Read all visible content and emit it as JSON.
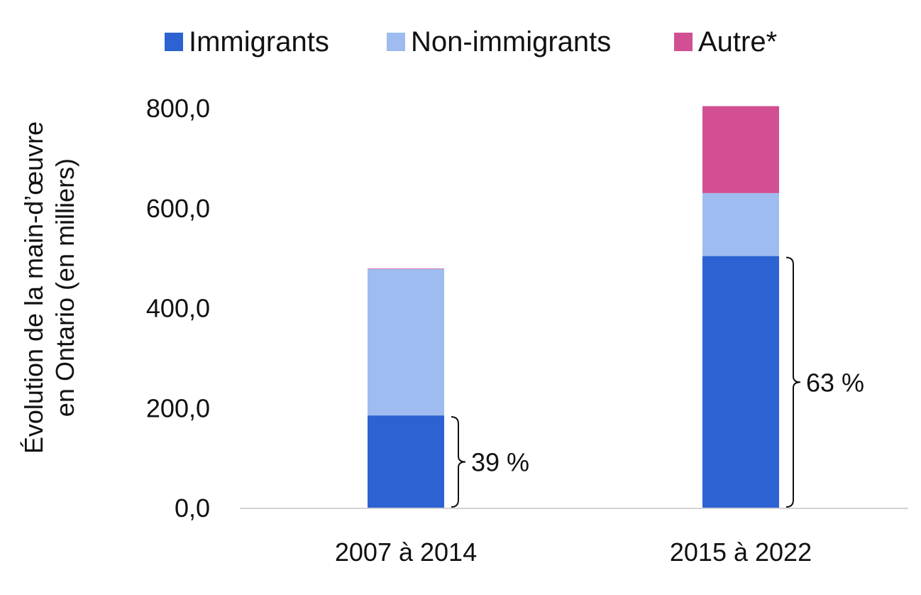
{
  "chart_data": {
    "type": "bar",
    "stacked": true,
    "categories": [
      "2007 à 2014",
      "2015 à 2022"
    ],
    "series": [
      {
        "name": "Immigrants",
        "color": "#2c62d1",
        "values": [
          186,
          505
        ]
      },
      {
        "name": "Non-immigrants",
        "color": "#9fbcf0",
        "values": [
          293,
          126
        ]
      },
      {
        "name": "Autre*",
        "color": "#d24f94",
        "values": [
          1,
          174
        ]
      }
    ],
    "ylabel_lines": [
      "Évolution de la main-d’œuvre",
      "en Ontario (en milliers)"
    ],
    "yticks": [
      "0,0",
      "200,0",
      "400,0",
      "600,0",
      "800,0"
    ],
    "ylim": [
      0,
      800
    ],
    "legend_position": "top",
    "grid": false,
    "annotations": [
      {
        "category": "2007 à 2014",
        "label": "39 %"
      },
      {
        "category": "2015 à 2022",
        "label": "63 %"
      }
    ]
  }
}
